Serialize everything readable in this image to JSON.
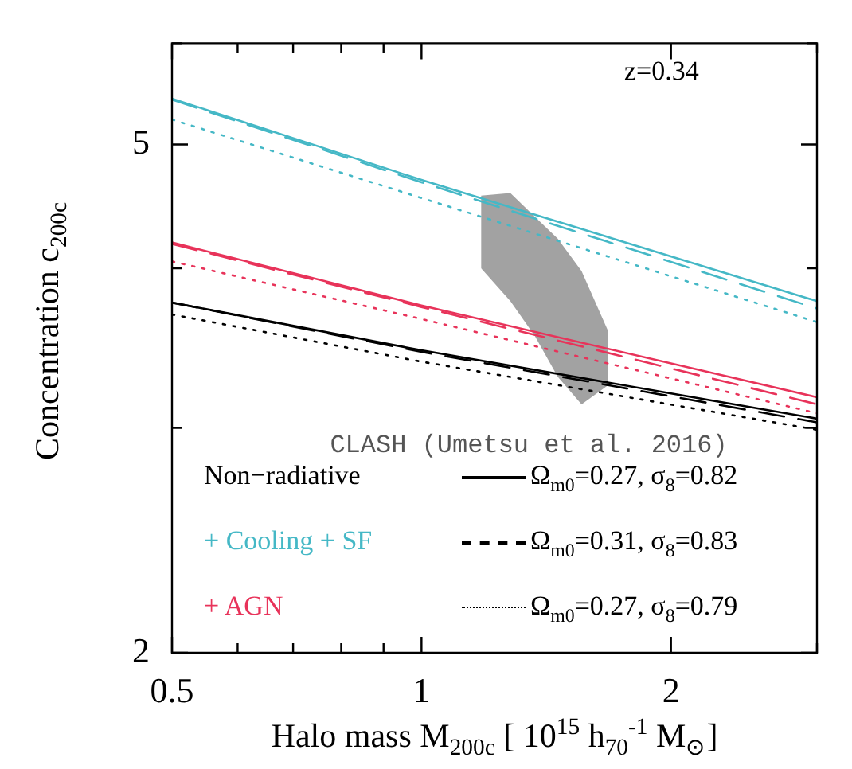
{
  "chart_data": {
    "type": "line",
    "xlabel": "Halo mass M$_{200c}$ [ 10$^{15}$ h$_{70}$$^{-1}$ M$_{⊙}$]",
    "ylabel": "Concentration c$_{200c}$",
    "log": "xy",
    "grid": false,
    "xlim": [
      0.5,
      3
    ],
    "xticks": [
      0.5,
      {
        "value": 0.6,
        "label": null
      },
      {
        "value": 0.7,
        "label": null
      },
      {
        "value": 0.8,
        "label": null
      },
      {
        "value": 0.9,
        "label": null
      },
      1,
      2,
      {
        "value": 3,
        "label": null
      }
    ],
    "ylim": [
      2,
      6
    ],
    "yticks": [
      2,
      {
        "value": 3,
        "label": null
      },
      {
        "value": 4,
        "label": null
      },
      5,
      {
        "value": 6,
        "label": null
      }
    ],
    "annotations": [
      "z=0.34",
      "Non−radiative",
      "+ Cooling + SF",
      "+ AGN",
      "Ω$_{m0}$=0.27, σ$_{8}$=0.82",
      "Ω$_{m0}$=0.31, σ$_{8}$=0.83",
      "Ω$_{m0}$=0.27, σ$_{8}$=0.79"
    ],
    "series": [
      {
        "color": "#000000",
        "line_style": "solid",
        "x": [
          0.5,
          1,
          3
        ],
        "values": [
          3.76,
          3.45,
          3.05
        ]
      },
      {
        "color": "#000000",
        "line_style": "dashed",
        "x": [
          0.5,
          1,
          3
        ],
        "values": [
          3.76,
          3.44,
          3.03
        ]
      },
      {
        "color": "#000000",
        "line_style": "dotted",
        "x": [
          0.5,
          1,
          3
        ],
        "values": [
          3.68,
          3.38,
          2.99
        ]
      },
      {
        "color": "#45b8c6",
        "line_style": "solid",
        "x": [
          0.5,
          1,
          3
        ],
        "values": [
          5.43,
          4.69,
          3.77
        ]
      },
      {
        "color": "#45b8c6",
        "line_style": "dashed",
        "x": [
          0.5,
          1,
          3
        ],
        "values": [
          5.42,
          4.67,
          3.72
        ]
      },
      {
        "color": "#45b8c6",
        "line_style": "dotted",
        "x": [
          0.5,
          1,
          3
        ],
        "values": [
          5.23,
          4.54,
          3.63
        ]
      },
      {
        "color": "#e8335a",
        "line_style": "solid",
        "x": [
          0.5,
          1,
          3
        ],
        "values": [
          4.19,
          3.74,
          3.17
        ]
      },
      {
        "color": "#e8335a",
        "line_style": "dashed",
        "x": [
          0.5,
          1,
          3
        ],
        "values": [
          4.18,
          3.73,
          3.13
        ]
      },
      {
        "color": "#e8335a",
        "line_style": "dotted",
        "x": [
          0.5,
          1,
          3
        ],
        "values": [
          4.05,
          3.65,
          3.08
        ]
      },
      {
        "type": "area",
        "name": "CLASH (Umetsu et al. 2016)",
        "color": "#555555",
        "x": [
          1.18,
          1.28,
          1.37,
          1.46,
          1.56,
          1.68
        ],
        "values": [
          null,
          null,
          null,
          null,
          null,
          null
        ],
        "upper": [
          4.56,
          4.58,
          4.39,
          4.22,
          3.98,
          3.57
        ],
        "lower": [
          4.0,
          3.77,
          3.54,
          3.29,
          3.13,
          3.24
        ]
      }
    ]
  }
}
